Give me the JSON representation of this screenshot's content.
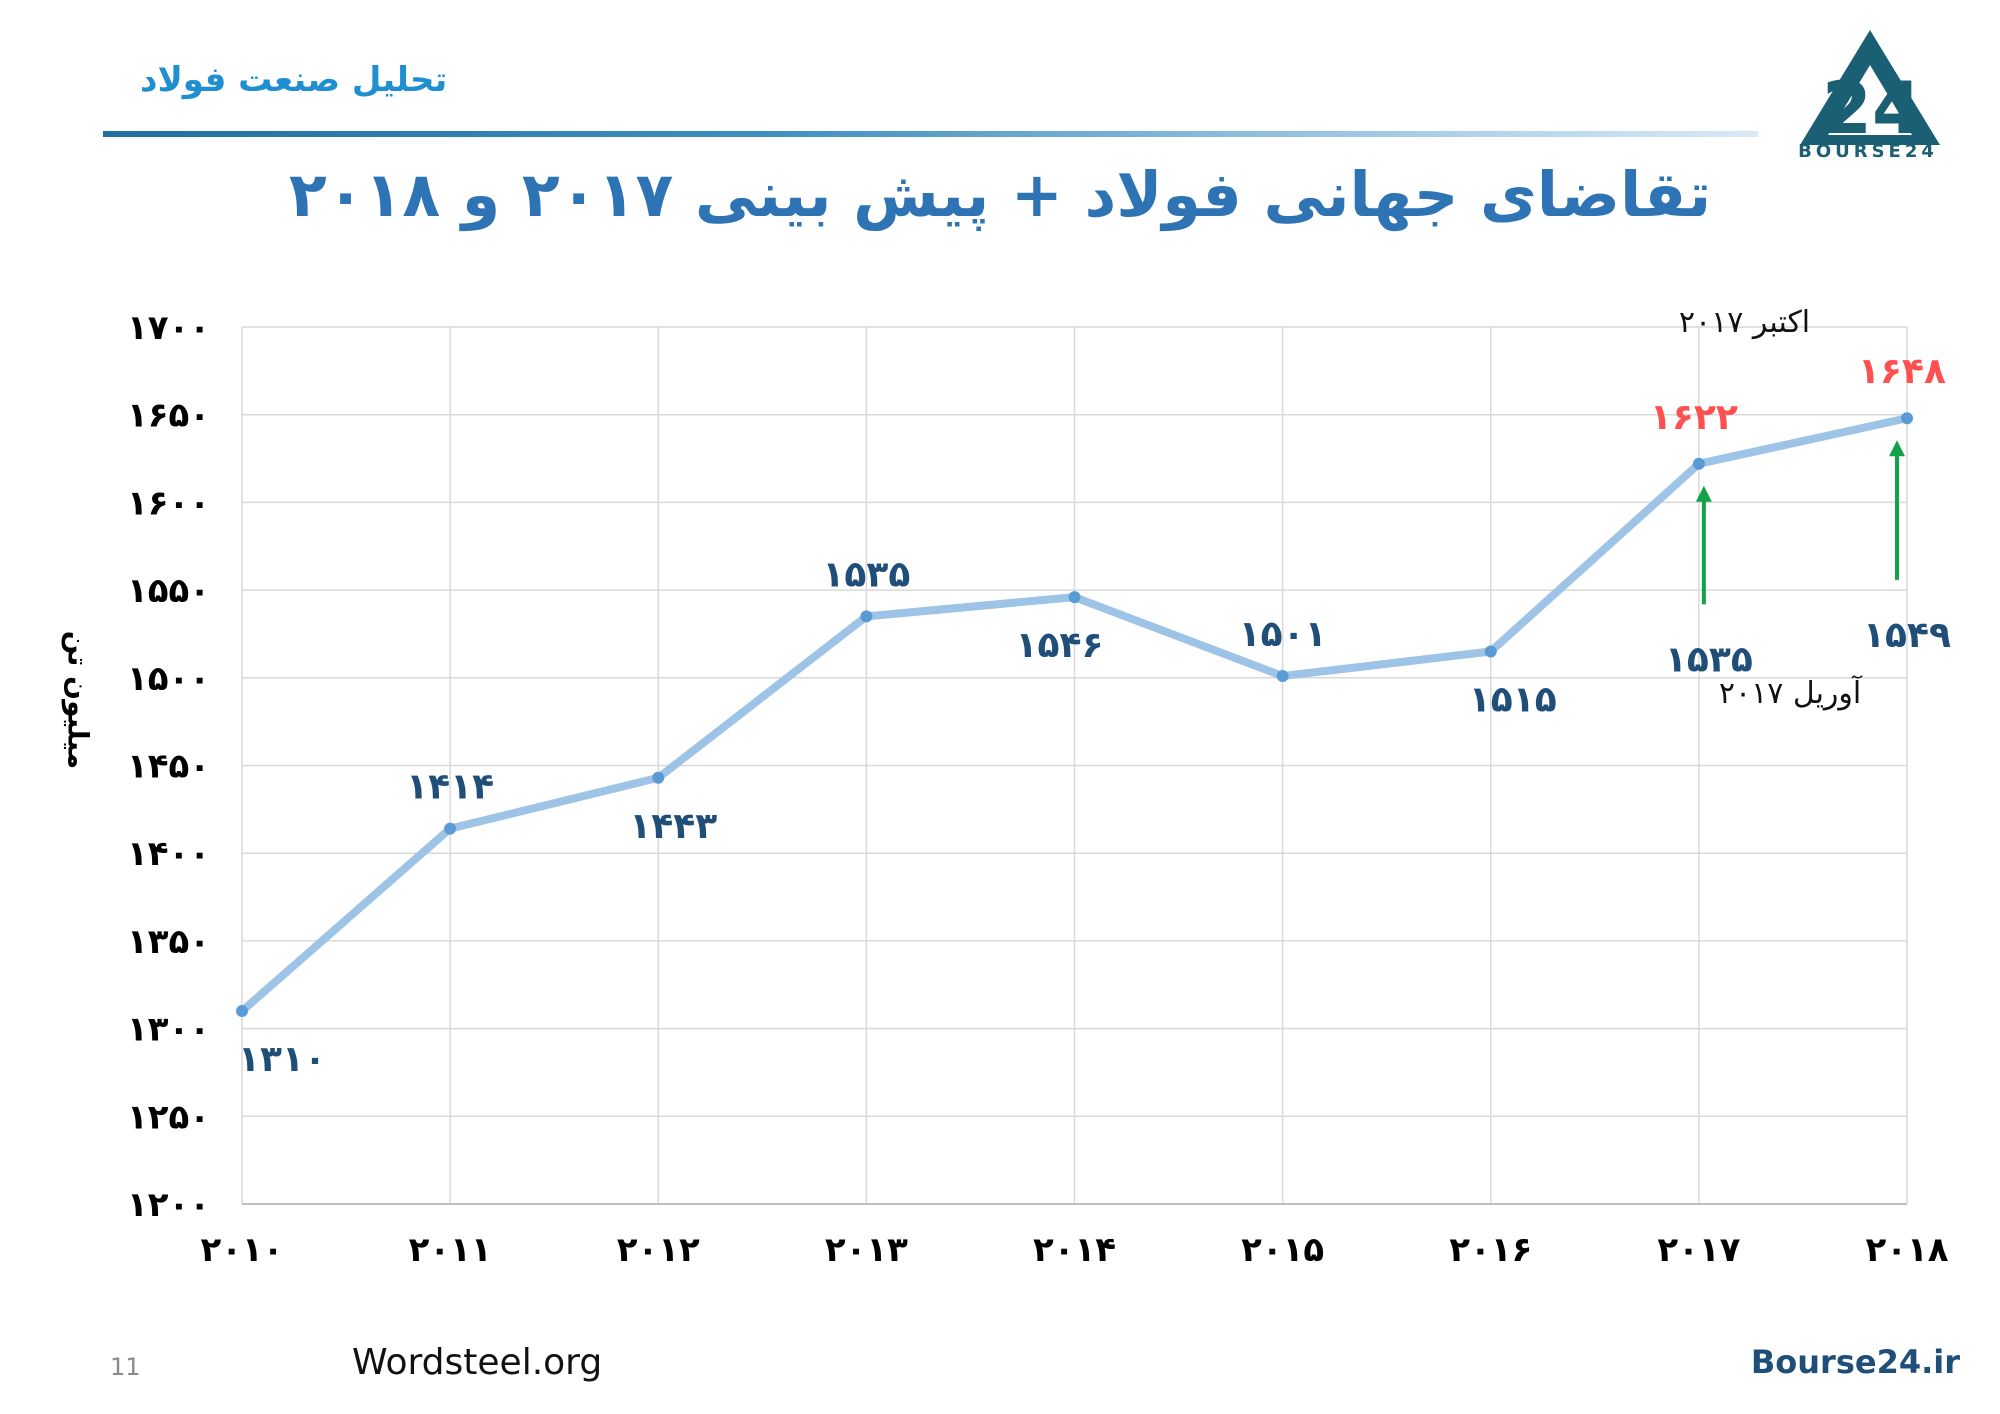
{
  "header": {
    "subtitle": "تحلیل صنعت فولاد",
    "logo_text": "BOURSE24",
    "title": "تقاضای جهانی فولاد + پیش بینی ۲۰۱۷ و ۲۰۱۸"
  },
  "footer": {
    "page_number": "11",
    "source_left": "Wordsteel.org",
    "source_right": "Bourse24.ir"
  },
  "colors": {
    "line": "#9dc3e6",
    "point": "#5b9bd5",
    "label": "#1f4e79",
    "revised_label": "#ff5050",
    "arrow": "#12a34a",
    "grid": "#d9d9d9"
  },
  "chart_data": {
    "type": "line",
    "title": "تقاضای جهانی فولاد + پیش بینی ۲۰۱۷ و ۲۰۱۸",
    "ylabel": "میلیون تن",
    "xlabel": "",
    "ylim": [
      1200,
      1700
    ],
    "ytick_values": [
      1200,
      1250,
      1300,
      1350,
      1400,
      1450,
      1500,
      1550,
      1600,
      1650,
      1700
    ],
    "ytick_labels": [
      "۱۲۰۰",
      "۱۲۵۰",
      "۱۳۰۰",
      "۱۳۵۰",
      "۱۴۰۰",
      "۱۴۵۰",
      "۱۵۰۰",
      "۱۵۵۰",
      "۱۶۰۰",
      "۱۶۵۰",
      "۱۷۰۰"
    ],
    "categories": [
      "2010",
      "2011",
      "2012",
      "2013",
      "2014",
      "2015",
      "2016",
      "2017",
      "2018"
    ],
    "category_labels": [
      "۲۰۱۰",
      "۲۰۱۱",
      "۲۰۱۲",
      "۲۰۱۳",
      "۲۰۱۴",
      "۲۰۱۵",
      "۲۰۱۶",
      "۲۰۱۷",
      "۲۰۱۸"
    ],
    "grid": true,
    "series": [
      {
        "values": [
          1310,
          1414,
          1443,
          1535,
          1546,
          1501,
          1515,
          1622,
          1648
        ]
      }
    ],
    "data_labels": [
      "۱۳۱۰",
      "۱۴۱۴",
      "۱۴۴۳",
      "۱۵۳۵",
      "۱۵۴۶",
      "۱۵۰۱",
      "۱۵۱۵",
      "۱۶۲۲",
      "۱۶۴۸"
    ],
    "data_label_positions": [
      "below",
      "above",
      "below",
      "above",
      "below",
      "above",
      "below",
      "above",
      "above"
    ],
    "april_forecast": {
      "note": "آوریل ۲۰۱۷",
      "categories": [
        "2017",
        "2018"
      ],
      "values": [
        1535,
        1549
      ],
      "labels": [
        "۱۵۳۵",
        "۱۵۴۹"
      ]
    },
    "october_forecast_note": "اکتبر ۲۰۱۷"
  }
}
